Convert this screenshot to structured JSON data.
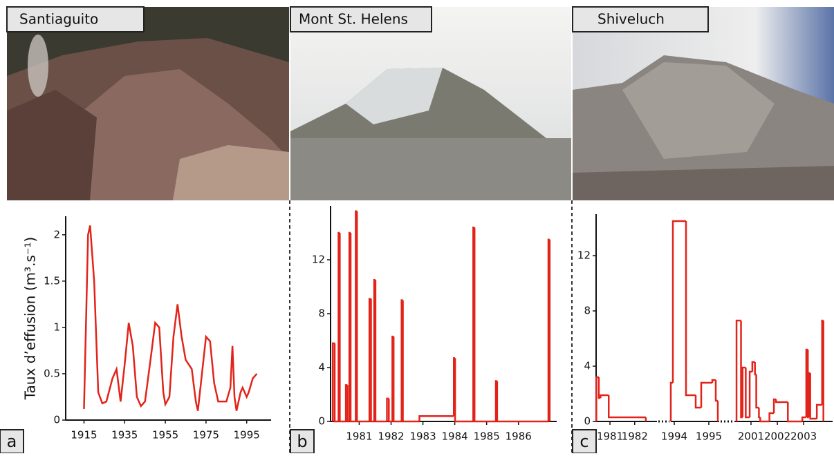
{
  "chart_data": [
    {
      "type": "line",
      "title": "Santiaguito",
      "panel": "a",
      "ylabel": "Taux d’effusion (m³.s⁻¹)",
      "color": "#e2231a",
      "x": [
        1915,
        1917,
        1918,
        1920,
        1922,
        1924,
        1926,
        1929,
        1931,
        1933,
        1935,
        1937,
        1939,
        1941,
        1943,
        1945,
        1948,
        1950,
        1952,
        1954,
        1955,
        1957,
        1959,
        1961,
        1963,
        1965,
        1968,
        1970,
        1971,
        1973,
        1975,
        1977,
        1979,
        1981,
        1985,
        1987,
        1988,
        1989,
        1990,
        1992,
        1993,
        1995,
        1996,
        1998,
        2000
      ],
      "values": [
        0.12,
        2.0,
        2.1,
        1.5,
        0.3,
        0.18,
        0.2,
        0.45,
        0.55,
        0.2,
        0.6,
        1.05,
        0.8,
        0.25,
        0.15,
        0.2,
        0.7,
        1.05,
        1.0,
        0.3,
        0.17,
        0.25,
        0.9,
        1.25,
        0.9,
        0.65,
        0.55,
        0.2,
        0.1,
        0.5,
        0.9,
        0.85,
        0.4,
        0.2,
        0.2,
        0.35,
        0.8,
        0.25,
        0.1,
        0.3,
        0.35,
        0.25,
        0.3,
        0.45,
        0.5
      ],
      "xlim": [
        1906,
        2007
      ],
      "xticks": [
        1915,
        1935,
        1955,
        1975,
        1995
      ],
      "ylim": [
        0,
        2.2
      ],
      "yticks": [
        0,
        0.5,
        1,
        1.5,
        2
      ]
    },
    {
      "type": "step",
      "title": "Mont St. Helens",
      "panel": "b",
      "color": "#e2231a",
      "series": [
        {
          "x": [
            1980.17,
            1980.23,
            1980.35,
            1980.39,
            1980.58,
            1980.63,
            1980.69,
            1980.73,
            1980.89,
            1980.93,
            1981.32,
            1981.37,
            1981.47,
            1981.51,
            1981.87,
            1981.93,
            1982.04,
            1982.08,
            1982.33,
            1982.37,
            1982.89,
            1983.97,
            1984.01,
            1984.58,
            1984.62,
            1985.29,
            1985.33,
            1986.94,
            1986.98
          ],
          "values": [
            5.8,
            0,
            14,
            0,
            2.7,
            0,
            14,
            0,
            15.6,
            0,
            9.1,
            0,
            10.5,
            0,
            1.7,
            0,
            6.3,
            0,
            9,
            0,
            0.4,
            4.7,
            0,
            14.4,
            0,
            3,
            0,
            13.5,
            0
          ]
        }
      ],
      "xlim": [
        1980.1,
        1987.2
      ],
      "xticks": [
        1981,
        1982,
        1983,
        1984,
        1985,
        1986
      ],
      "ylim": [
        0,
        16
      ],
      "yticks": [
        0,
        4,
        8,
        12
      ]
    },
    {
      "type": "step",
      "title": "Shiveluch",
      "panel": "c",
      "color": "#e2231a",
      "series": [
        {
          "x": [
            1980.45,
            1980.55,
            1980.62,
            1980.95,
            1982.45
          ],
          "values": [
            3.2,
            1.7,
            1.9,
            0.3,
            0
          ]
        },
        {
          "x": [
            1993.9,
            1993.96,
            1994.34,
            1994.62,
            1994.78,
            1995.1,
            1995.2,
            1995.26
          ],
          "values": [
            2.8,
            14.5,
            1.9,
            1,
            2.8,
            3,
            1.5,
            0
          ]
        },
        {
          "x": [
            2000.45,
            2000.62,
            2000.68,
            2000.8,
            2000.95,
            2001.05,
            2001.15,
            2001.2,
            2001.3,
            2001.35,
            2001.7,
            2001.87,
            2001.95,
            2002.4,
            2002.95,
            2003.1,
            2003.16,
            2003.2,
            2003.25,
            2003.5,
            2003.7,
            2003.75
          ],
          "values": [
            7.3,
            0.3,
            3.9,
            0.3,
            3.6,
            4.3,
            3.4,
            1,
            0.3,
            0,
            0.6,
            1.6,
            1.4,
            0,
            0.3,
            5.2,
            0.3,
            3.5,
            0.2,
            1.2,
            7.3,
            0
          ]
        }
      ],
      "xlim": [
        [
          1980.44,
          1982.9
        ],
        [
          1993.9,
          1995.3
        ],
        [
          2000.37,
          2004.1
        ]
      ],
      "xticks": [
        1981,
        1982,
        1994,
        1995,
        2001,
        2002,
        2003
      ],
      "ylim": [
        0,
        15
      ],
      "yticks": [
        0,
        4,
        8,
        12
      ]
    }
  ]
}
